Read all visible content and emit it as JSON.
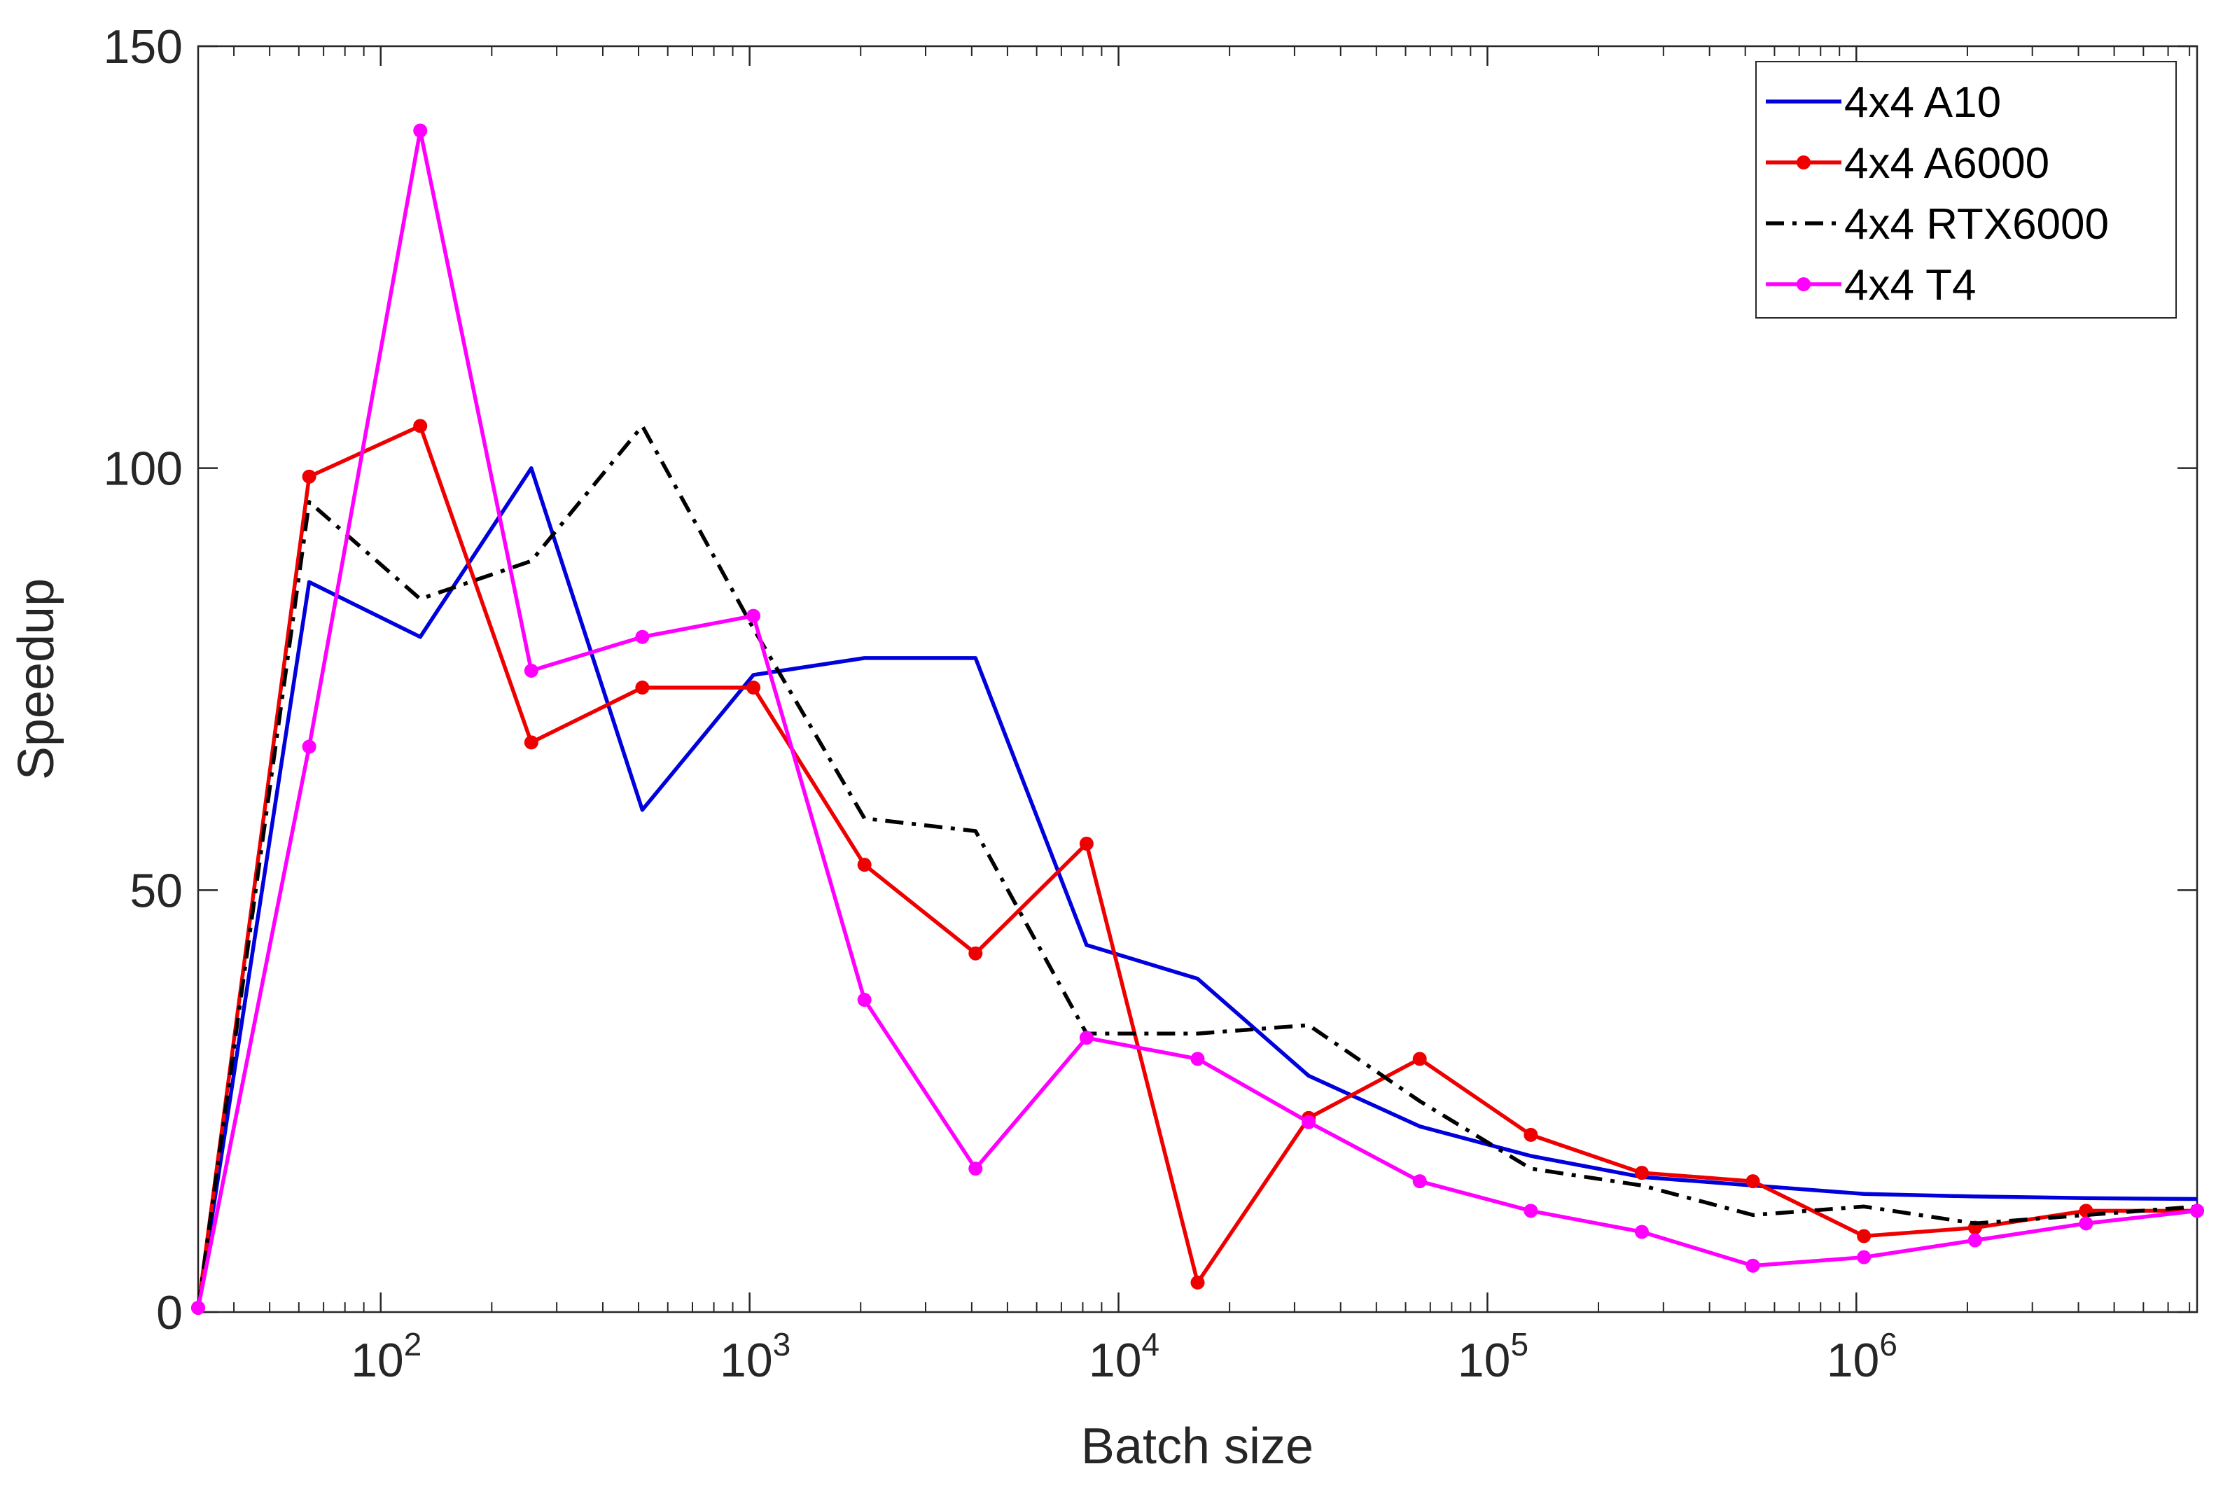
{
  "chart_data": {
    "type": "line",
    "title": "",
    "xlabel": "Batch size",
    "ylabel": "Speedup",
    "xscale": "log",
    "xlim": [
      32,
      8388608
    ],
    "ylim": [
      0,
      150
    ],
    "grid": false,
    "legend_position": "top-right",
    "x": [
      32,
      64,
      128,
      256,
      512,
      1024,
      2048,
      4096,
      8192,
      16384,
      32768,
      65536,
      131072,
      262144,
      524288,
      1048576,
      2097152,
      4194304,
      8388608
    ],
    "yticks": [
      {
        "value": 0,
        "label": "0"
      },
      {
        "value": 50,
        "label": "50"
      },
      {
        "value": 100,
        "label": "100"
      },
      {
        "value": 150,
        "label": "150"
      }
    ],
    "xticks": [
      {
        "value": 100,
        "base": "10",
        "exp": "2"
      },
      {
        "value": 1000,
        "base": "10",
        "exp": "3"
      },
      {
        "value": 10000,
        "base": "10",
        "exp": "4"
      },
      {
        "value": 100000,
        "base": "10",
        "exp": "5"
      },
      {
        "value": 1000000,
        "base": "10",
        "exp": "6"
      }
    ],
    "series": [
      {
        "name": "4x4 A10",
        "color": "#0000dd",
        "dash": "solid",
        "marker": false,
        "values": [
          0.5,
          86.5,
          80,
          100,
          59.5,
          75.5,
          77.5,
          77.5,
          43.5,
          39.5,
          28,
          22,
          18.5,
          16,
          15,
          14,
          13.7,
          13.5,
          13.4
        ]
      },
      {
        "name": "4x4 A6000",
        "color": "#ee0000",
        "dash": "solid",
        "marker": true,
        "values": [
          0.5,
          99,
          105,
          67.5,
          74,
          74,
          53,
          42.5,
          55.5,
          3.5,
          23,
          30,
          21,
          16.5,
          15.5,
          9,
          10,
          12,
          12
        ]
      },
      {
        "name": "4x4 RTX6000",
        "color": "#000000",
        "dash": "dashdot",
        "marker": false,
        "values": [
          0.5,
          96,
          84.5,
          89,
          105,
          81,
          58.5,
          57,
          33,
          33,
          34,
          25,
          17,
          15,
          11.5,
          12.5,
          10.5,
          11.5,
          12.5
        ]
      },
      {
        "name": "4x4 T4",
        "color": "#ff00ff",
        "dash": "solid",
        "marker": true,
        "values": [
          0.5,
          67,
          140,
          76,
          80,
          82.5,
          37,
          17,
          32.5,
          30,
          22.5,
          15.5,
          12,
          9.5,
          5.5,
          6.5,
          8.5,
          10.5,
          12
        ]
      }
    ]
  }
}
